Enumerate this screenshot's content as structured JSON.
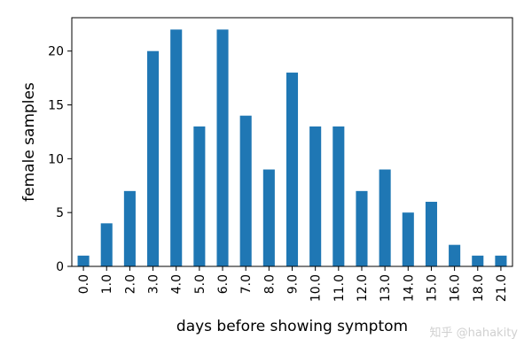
{
  "chart_data": {
    "type": "bar",
    "categories": [
      "0.0",
      "1.0",
      "2.0",
      "3.0",
      "4.0",
      "5.0",
      "6.0",
      "7.0",
      "8.0",
      "9.0",
      "10.0",
      "11.0",
      "12.0",
      "13.0",
      "14.0",
      "15.0",
      "16.0",
      "18.0",
      "21.0"
    ],
    "values": [
      1,
      4,
      7,
      20,
      22,
      13,
      22,
      14,
      9,
      18,
      13,
      13,
      7,
      9,
      5,
      6,
      2,
      1,
      1
    ],
    "title": "",
    "xlabel": "days before showing symptom",
    "ylabel": "female samples",
    "ylim": [
      0,
      23.1
    ],
    "yticks": [
      0,
      5,
      10,
      15,
      20
    ],
    "bar_color": "#1f77b4",
    "grid": false,
    "legend": "none"
  },
  "watermark": "知乎 @hahakity"
}
